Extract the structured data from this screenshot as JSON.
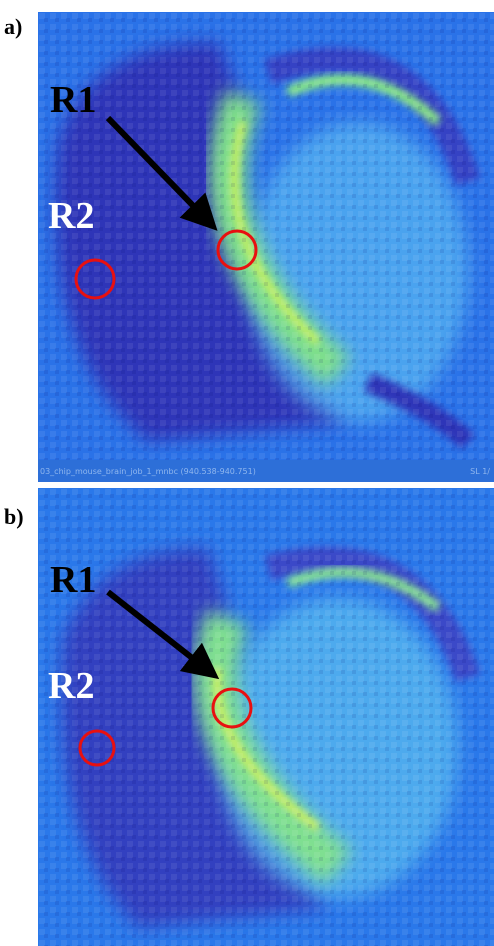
{
  "panels": [
    {
      "label": "a)",
      "r1": "R1",
      "r2": "R2",
      "caption": "03_chip_mouse_brain_job_1_mnbc (940.538-940.751)",
      "slice": "SL 1/"
    },
    {
      "label": "b)",
      "r1": "R1",
      "r2": "R2"
    }
  ]
}
